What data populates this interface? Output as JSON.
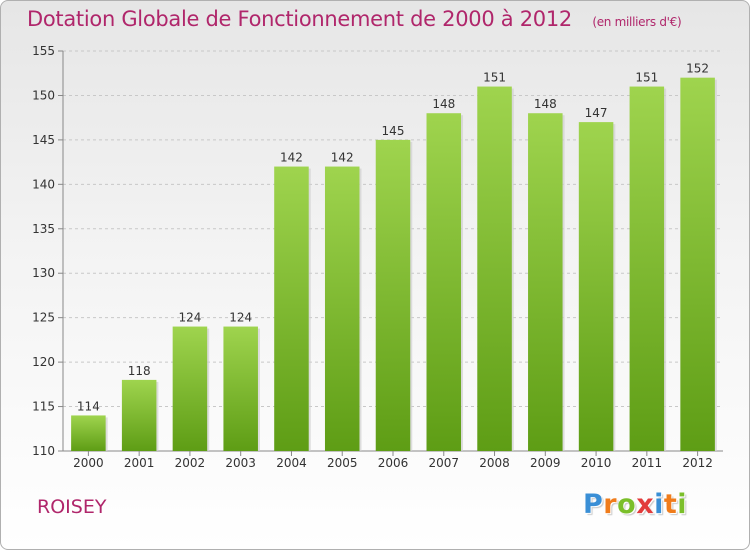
{
  "header": {
    "title": "Dotation Globale de Fonctionnement de 2000 à 2012",
    "unit": "(en milliers d'€)"
  },
  "footer": {
    "commune": "ROISEY",
    "logo_letters": [
      "P",
      "r",
      "o",
      "x",
      "i",
      "t",
      "i"
    ],
    "logo_colors": [
      "#3a8fd6",
      "#f07c1b",
      "#7bbf2a",
      "#e23b3b",
      "#3a8fd6",
      "#f07c1b",
      "#7bbf2a"
    ]
  },
  "chart_data": {
    "type": "bar",
    "categories": [
      "2000",
      "2001",
      "2002",
      "2003",
      "2004",
      "2005",
      "2006",
      "2007",
      "2008",
      "2009",
      "2010",
      "2011",
      "2012"
    ],
    "values": [
      114,
      118,
      124,
      124,
      142,
      142,
      145,
      148,
      151,
      148,
      147,
      151,
      152
    ],
    "ylim": [
      110,
      155
    ],
    "yticks": [
      110,
      115,
      120,
      125,
      130,
      135,
      140,
      145,
      150,
      155
    ],
    "grid": true,
    "bar_color_top": "#9fd44e",
    "bar_color_bottom": "#5e9d15",
    "title_color": "#b0266b"
  }
}
